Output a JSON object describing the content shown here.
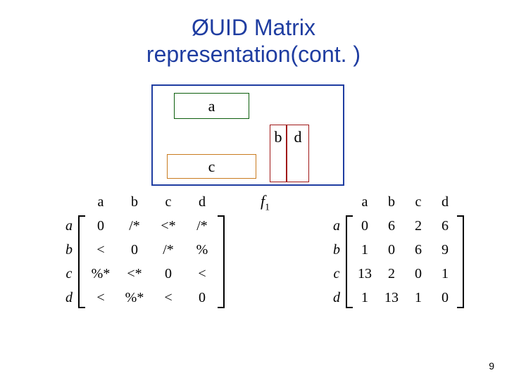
{
  "title_line1": "UID Matrix",
  "title_line2": "representation(cont. )",
  "bullet": "Ø",
  "diagram": {
    "a": "a",
    "b": "b",
    "c": "c",
    "d": "d"
  },
  "f_label": "f",
  "f_sub": "1",
  "left": {
    "cols": [
      "a",
      "b",
      "c",
      "d"
    ],
    "rows": [
      "a",
      "b",
      "c",
      "d"
    ],
    "cells": [
      [
        "0",
        "/*",
        "<*",
        "/*"
      ],
      [
        "<",
        "0",
        "/*",
        "%"
      ],
      [
        "%*",
        "<*",
        "0",
        "<"
      ],
      [
        "<",
        "%*",
        "<",
        "0"
      ]
    ]
  },
  "right": {
    "cols": [
      "a",
      "b",
      "c",
      "d"
    ],
    "rows": [
      "a",
      "b",
      "c",
      "d"
    ],
    "cells": [
      [
        "0",
        "6",
        "2",
        "6"
      ],
      [
        "1",
        "0",
        "6",
        "9"
      ],
      [
        "13",
        "2",
        "0",
        "1"
      ],
      [
        "1",
        "13",
        "1",
        "0"
      ]
    ]
  },
  "page_number": "9"
}
